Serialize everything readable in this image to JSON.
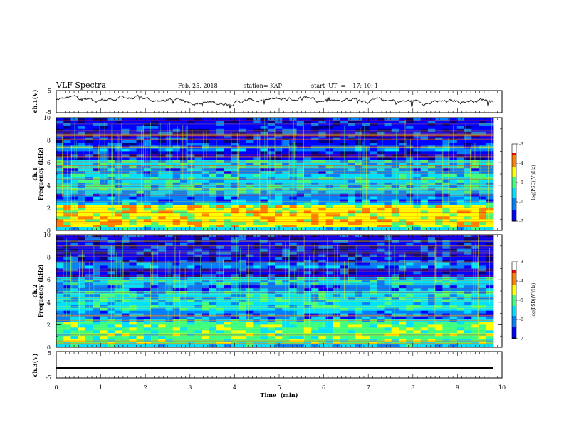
{
  "header": {
    "title": "VLF Spectra",
    "date": "Feb. 25, 2018",
    "station": "station= KAP",
    "start": "start  UT  =    17: 10: 1"
  },
  "chart_data": [
    {
      "type": "line",
      "panel": "ch1-waveform",
      "ylabel": "ch.1(V)",
      "ylim": [
        -5,
        5
      ],
      "yticks": [
        "5",
        "-5"
      ],
      "xlim": [
        0,
        10
      ]
    },
    {
      "type": "heatmap",
      "panel": "ch1-spectrogram",
      "ylabel": "ch.1\nFrequency (kHz)",
      "ylim": [
        0,
        10
      ],
      "yticks": [
        "0",
        "2",
        "4",
        "6",
        "8",
        "10"
      ],
      "xlim": [
        0,
        10
      ],
      "colorbar": {
        "label": "log(PSD)(V²/Hz)",
        "range": [
          -7,
          -3
        ],
        "ticks": [
          "-3",
          "-4",
          "-5",
          "-6",
          "-7"
        ]
      }
    },
    {
      "type": "heatmap",
      "panel": "ch2-spectrogram",
      "ylabel": "ch.2\nFrequency (kHz)",
      "ylim": [
        0,
        10
      ],
      "yticks": [
        "0",
        "2",
        "4",
        "6",
        "8",
        "10"
      ],
      "xlim": [
        0,
        10
      ],
      "colorbar": {
        "label": "log(PSD)(V²/Hz)",
        "range": [
          -7,
          -3
        ],
        "ticks": [
          "-3",
          "-4",
          "-5",
          "-6",
          "-7"
        ]
      }
    },
    {
      "type": "line",
      "panel": "ch3-waveform",
      "ylabel": "ch.3(V)",
      "ylim": [
        -5,
        5
      ],
      "yticks": [
        "5",
        "-5"
      ],
      "xlim": [
        0,
        10
      ],
      "level": -1.2
    }
  ],
  "xaxis": {
    "label": "Time  (min)",
    "ticks": [
      "0",
      "1",
      "2",
      "3",
      "4",
      "5",
      "6",
      "7",
      "8",
      "9",
      "10"
    ]
  },
  "colors": {
    "spectrum": [
      "#00007f",
      "#0000ff",
      "#0080ff",
      "#00e0ff",
      "#40ff80",
      "#ffff00",
      "#ff8000",
      "#ff0000"
    ]
  }
}
